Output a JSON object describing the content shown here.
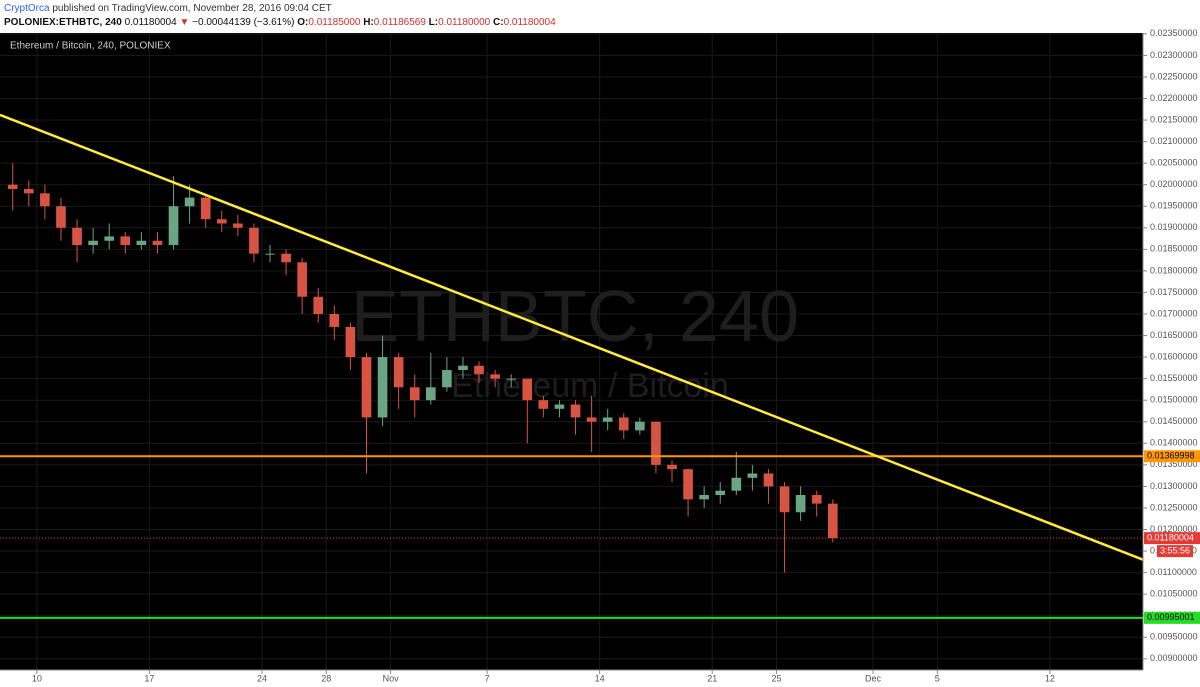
{
  "header": {
    "author": "CryptOrca",
    "published": "published on TradingView.com, November 28, 2016 09:04 CET",
    "symbol": "POLONIEX:ETHBTC, 240",
    "last": "0.01180004",
    "arrow": "▼",
    "change": "−0.00044139 (−3.61%)",
    "ohlc": [
      {
        "label": "O:",
        "value": "0.01185000"
      },
      {
        "label": "H:",
        "value": "0.01186569"
      },
      {
        "label": "L:",
        "value": "0.01180000"
      },
      {
        "label": "C:",
        "value": "0.01180004"
      }
    ]
  },
  "chart_data": {
    "type": "candlestick",
    "title": "Ethereum / Bitcoin, 240, POLONIEX",
    "watermark": "ETHBTC, 240",
    "watermark_sub": "Ethereum / Bitcoin",
    "up_color": "#6ba583",
    "down_color": "#d75442",
    "grid": true,
    "xlim": [
      "2016-10-07T17:00:00Z",
      "2016-12-17T19:00:00Z"
    ],
    "xticks": [
      {
        "value": "2016-10-10",
        "label": "10"
      },
      {
        "value": "2016-10-17",
        "label": "17"
      },
      {
        "value": "2016-10-24",
        "label": "24"
      },
      {
        "value": "2016-10-28",
        "label": "28"
      },
      {
        "value": "2016-11-01",
        "label": "Nov"
      },
      {
        "value": "2016-11-07",
        "label": "7"
      },
      {
        "value": "2016-11-14",
        "label": "14"
      },
      {
        "value": "2016-11-21",
        "label": "21"
      },
      {
        "value": "2016-11-25",
        "label": "25"
      },
      {
        "value": "2016-12-01",
        "label": "Dec"
      },
      {
        "value": "2016-12-05",
        "label": "5"
      },
      {
        "value": "2016-12-12",
        "label": "12"
      }
    ],
    "ylim": [
      0.00874,
      0.02352
    ],
    "yticks": [
      {
        "value": 0.009,
        "label": "0.00900000"
      },
      {
        "value": 0.0095,
        "label": "0.00950000"
      },
      {
        "value": 0.01,
        "label": "0.01000000"
      },
      {
        "value": 0.0105,
        "label": "0.01050000"
      },
      {
        "value": 0.011,
        "label": "0.01100000"
      },
      {
        "value": 0.0115,
        "label": "0.01150000"
      },
      {
        "value": 0.012,
        "label": "0.01200000"
      },
      {
        "value": 0.0125,
        "label": "0.01250000"
      },
      {
        "value": 0.013,
        "label": "0.01300000"
      },
      {
        "value": 0.0135,
        "label": "0.01350000"
      },
      {
        "value": 0.014,
        "label": "0.01400000"
      },
      {
        "value": 0.0145,
        "label": "0.01450000"
      },
      {
        "value": 0.015,
        "label": "0.01500000"
      },
      {
        "value": 0.0155,
        "label": "0.01550000"
      },
      {
        "value": 0.016,
        "label": "0.01600000"
      },
      {
        "value": 0.0165,
        "label": "0.01650000"
      },
      {
        "value": 0.017,
        "label": "0.01700000"
      },
      {
        "value": 0.0175,
        "label": "0.01750000"
      },
      {
        "value": 0.018,
        "label": "0.01800000"
      },
      {
        "value": 0.0185,
        "label": "0.01850000"
      },
      {
        "value": 0.019,
        "label": "0.01900000"
      },
      {
        "value": 0.0195,
        "label": "0.01950000"
      },
      {
        "value": 0.02,
        "label": "0.02000000"
      },
      {
        "value": 0.0205,
        "label": "0.02050000"
      },
      {
        "value": 0.021,
        "label": "0.02100000"
      },
      {
        "value": 0.0215,
        "label": "0.02150000"
      },
      {
        "value": 0.022,
        "label": "0.02200000"
      },
      {
        "value": 0.0225,
        "label": "0.02250000"
      },
      {
        "value": 0.023,
        "label": "0.02300000"
      },
      {
        "value": 0.0235,
        "label": "0.02350000"
      }
    ],
    "candles": {
      "x": [
        "2016-10-08",
        "2016-10-09",
        "2016-10-10",
        "2016-10-11",
        "2016-10-12",
        "2016-10-13",
        "2016-10-14",
        "2016-10-15",
        "2016-10-16",
        "2016-10-17",
        "2016-10-18",
        "2016-10-19",
        "2016-10-20",
        "2016-10-21",
        "2016-10-22",
        "2016-10-23",
        "2016-10-24",
        "2016-10-25",
        "2016-10-26",
        "2016-10-27",
        "2016-10-28",
        "2016-10-29",
        "2016-10-30",
        "2016-10-31",
        "2016-11-01",
        "2016-11-02",
        "2016-11-03",
        "2016-11-04",
        "2016-11-05",
        "2016-11-06",
        "2016-11-07",
        "2016-11-08",
        "2016-11-09",
        "2016-11-10",
        "2016-11-11",
        "2016-11-12",
        "2016-11-13",
        "2016-11-14",
        "2016-11-15",
        "2016-11-16",
        "2016-11-17",
        "2016-11-18",
        "2016-11-19",
        "2016-11-20",
        "2016-11-21",
        "2016-11-22",
        "2016-11-23",
        "2016-11-24",
        "2016-11-25",
        "2016-11-26",
        "2016-11-27",
        "2016-11-28"
      ],
      "open": [
        0.02,
        0.0199,
        0.0198,
        0.0195,
        0.019,
        0.0186,
        0.0187,
        0.0188,
        0.0186,
        0.0187,
        0.0186,
        0.0195,
        0.0197,
        0.0192,
        0.0191,
        0.019,
        0.0184,
        0.0184,
        0.0182,
        0.0174,
        0.017,
        0.0167,
        0.016,
        0.0146,
        0.016,
        0.0153,
        0.015,
        0.0153,
        0.0157,
        0.0158,
        0.0156,
        0.0155,
        0.0155,
        0.015,
        0.0148,
        0.0149,
        0.0146,
        0.0145,
        0.0146,
        0.0143,
        0.0145,
        0.0135,
        0.0134,
        0.0127,
        0.0128,
        0.0129,
        0.0132,
        0.0133,
        0.013,
        0.0124,
        0.0128,
        0.0126
      ],
      "high": [
        0.0205,
        0.0201,
        0.02,
        0.0197,
        0.0192,
        0.019,
        0.0191,
        0.0189,
        0.0189,
        0.0189,
        0.0202,
        0.02,
        0.0198,
        0.0194,
        0.0193,
        0.0191,
        0.0186,
        0.0185,
        0.0183,
        0.0176,
        0.0172,
        0.0168,
        0.0161,
        0.0165,
        0.0161,
        0.0156,
        0.0161,
        0.016,
        0.016,
        0.0159,
        0.0157,
        0.0156,
        0.0155,
        0.0151,
        0.015,
        0.015,
        0.0151,
        0.0148,
        0.0147,
        0.0146,
        0.0145,
        0.0136,
        0.0134,
        0.013,
        0.0131,
        0.0138,
        0.0135,
        0.0134,
        0.0131,
        0.013,
        0.0129,
        0.0127
      ],
      "low": [
        0.0194,
        0.0195,
        0.0192,
        0.0187,
        0.0182,
        0.0184,
        0.0185,
        0.0184,
        0.0185,
        0.0184,
        0.0185,
        0.0191,
        0.019,
        0.0189,
        0.0188,
        0.0182,
        0.0182,
        0.0179,
        0.017,
        0.0168,
        0.0164,
        0.0157,
        0.0133,
        0.0144,
        0.0148,
        0.0146,
        0.0149,
        0.0152,
        0.0155,
        0.0154,
        0.0153,
        0.0153,
        0.014,
        0.0146,
        0.0146,
        0.0142,
        0.0138,
        0.0143,
        0.0141,
        0.0142,
        0.0133,
        0.0131,
        0.0123,
        0.0125,
        0.0126,
        0.0128,
        0.0129,
        0.0126,
        0.011,
        0.0122,
        0.0123,
        0.0117
      ],
      "close": [
        0.0199,
        0.0198,
        0.0195,
        0.019,
        0.0186,
        0.0187,
        0.0188,
        0.0186,
        0.0187,
        0.0186,
        0.0195,
        0.0197,
        0.0192,
        0.0191,
        0.019,
        0.0184,
        0.0184,
        0.0182,
        0.0174,
        0.017,
        0.0167,
        0.016,
        0.0146,
        0.016,
        0.0153,
        0.015,
        0.0153,
        0.0157,
        0.0158,
        0.0156,
        0.0155,
        0.0155,
        0.015,
        0.0148,
        0.0149,
        0.0146,
        0.0145,
        0.0146,
        0.0143,
        0.0145,
        0.0135,
        0.0134,
        0.0127,
        0.0128,
        0.0129,
        0.0132,
        0.0133,
        0.013,
        0.0124,
        0.0128,
        0.0126,
        0.0118
      ]
    },
    "trendline": {
      "color": "#ffeb3b",
      "x": [
        "2016-10-07T17:00:00Z",
        "2016-12-17T19:00:00Z"
      ],
      "values": [
        0.02162,
        0.0113
      ]
    },
    "levels": [
      {
        "value": 0.01369998,
        "color": "#ff9800"
      },
      {
        "value": 0.00995001,
        "color": "#22dd22"
      }
    ],
    "last_price": {
      "value": 0.01180004,
      "color": "#e53935",
      "countdown": "3:55:56"
    }
  }
}
